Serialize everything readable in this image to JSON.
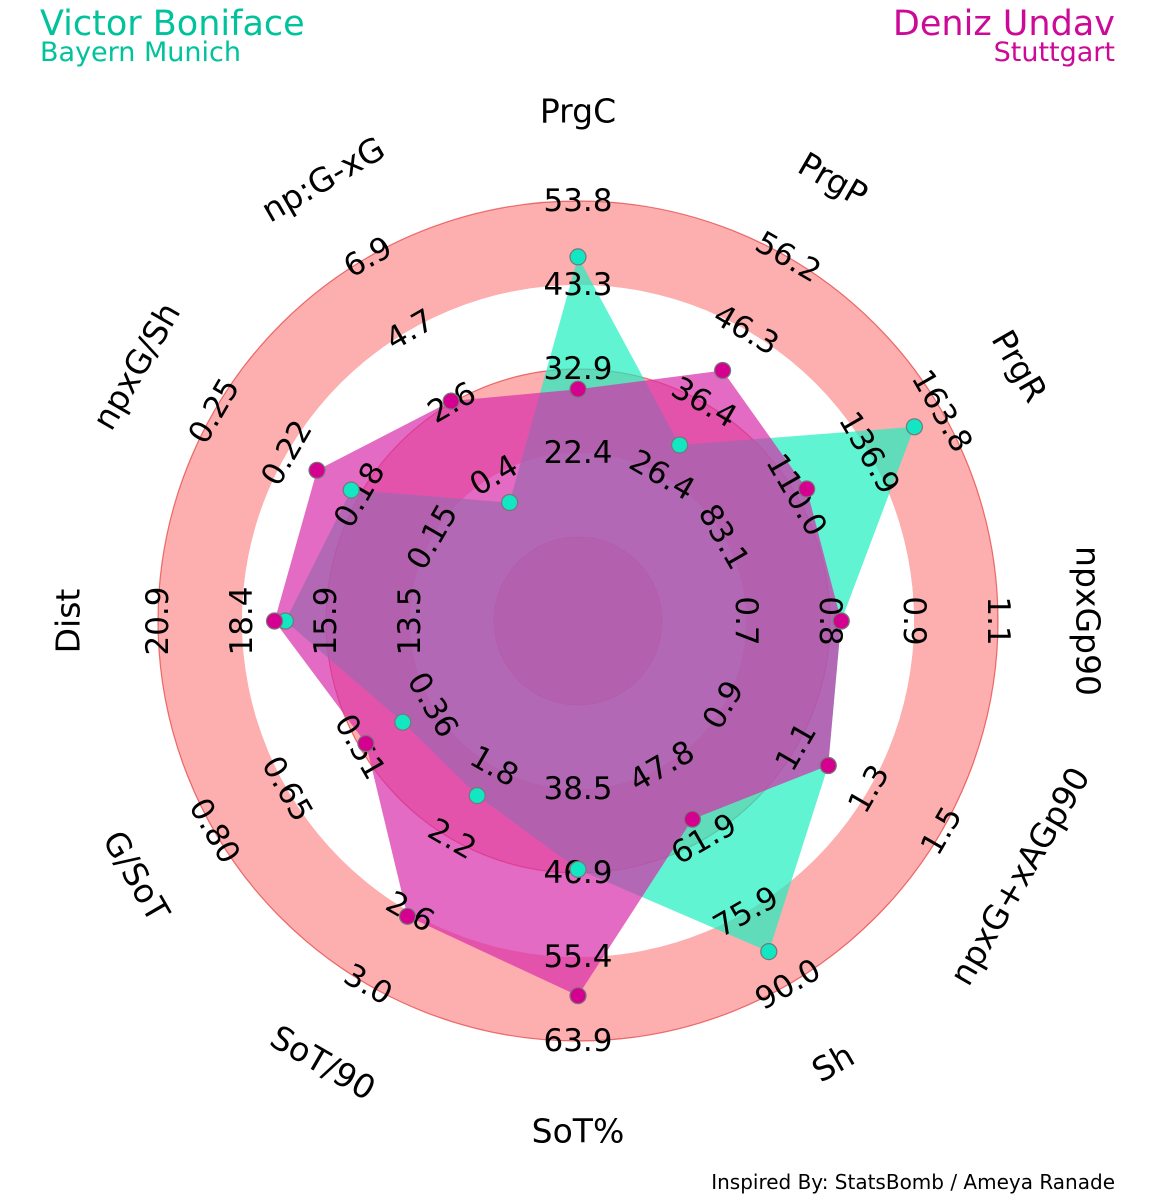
{
  "players": {
    "p1": {
      "name": "Victor Boniface",
      "team": "Bayern Munich",
      "color": "#00c29b",
      "fill": "#1df0c0",
      "marker": "#12e6c2"
    },
    "p2": {
      "name": "Deniz Undav",
      "team": "Stuttgart",
      "color": "#cc0a97",
      "fill": "#d72caa",
      "marker": "#d4008f"
    }
  },
  "credit": "Inspired By: StatsBomb / Ameya Ranade",
  "colors": {
    "ring": "#fc7878",
    "ring_stroke": "#e02020",
    "core": "#b8578d"
  },
  "chart_data": {
    "type": "radar",
    "params": [
      "PrgC",
      "PrgP",
      "PrgR",
      "npxGp90",
      "npxG+xAGp90",
      "Sh",
      "SoT%",
      "SoT/90",
      "G/SoT",
      "Dist",
      "npxG/Sh",
      "np:G-xG"
    ],
    "ranges": [
      [
        1.5,
        53.8
      ],
      [
        6.6,
        56.2
      ],
      [
        1.8,
        163.8
      ],
      [
        0.5,
        1.1
      ],
      [
        0.5,
        1.5
      ],
      [
        5.8,
        90.0
      ],
      [
        21.6,
        63.9
      ],
      [
        1.0,
        3.0
      ],
      [
        0.09,
        0.8
      ],
      [
        8.5,
        20.9
      ],
      [
        0.08,
        0.25
      ],
      [
        -2.0,
        6.9
      ]
    ],
    "tick_labels": [
      [
        "22.4",
        "32.9",
        "43.3",
        "53.8"
      ],
      [
        "26.4",
        "36.4",
        "46.3",
        "56.2"
      ],
      [
        "83.1",
        "110.0",
        "136.9",
        "163.8"
      ],
      [
        "0.7",
        "0.8",
        "0.9",
        "1.1"
      ],
      [
        "0.9",
        "1.1",
        "1.3",
        "1.5"
      ],
      [
        "47.8",
        "61.9",
        "75.9",
        "90.0"
      ],
      [
        "38.5",
        "46.9",
        "55.4",
        "63.9"
      ],
      [
        "1.8",
        "2.2",
        "2.6",
        "3.0"
      ],
      [
        "0.36",
        "0.51",
        "0.65",
        "0.80"
      ],
      [
        "13.5",
        "15.9",
        "18.4",
        "20.9"
      ],
      [
        "0.15",
        "0.18",
        "0.22",
        "0.25"
      ],
      [
        "0.4",
        "2.6",
        "4.7",
        "6.9"
      ]
    ],
    "series": [
      {
        "name": "Victor Boniface",
        "values": [
          45.1,
          24.2,
          148.6,
          0.82,
          1.11,
          80.4,
          42.3,
          1.7,
          0.34,
          16.2,
          0.17,
          -0.6
        ]
      },
      {
        "name": "Deniz Undav",
        "values": [
          24.5,
          36.9,
          88.6,
          0.82,
          1.11,
          42.1,
          58.2,
          2.53,
          0.43,
          16.6,
          0.19,
          2.5
        ]
      }
    ]
  }
}
